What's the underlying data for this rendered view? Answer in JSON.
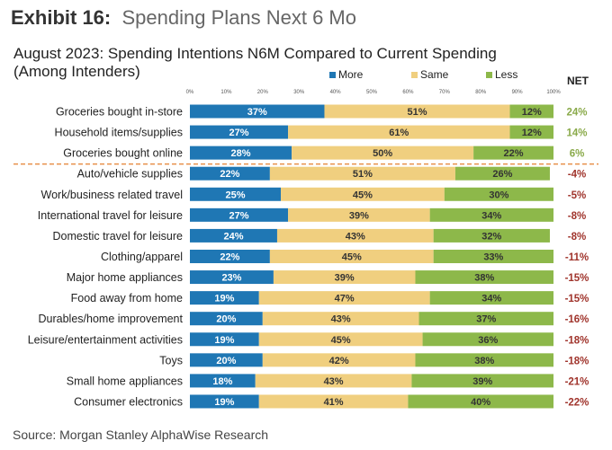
{
  "exhibit": {
    "label": "Exhibit 16:",
    "title": "Spending Plans Next 6 Mo"
  },
  "source": "Source: Morgan Stanley AlphaWise Research",
  "chart_data": {
    "type": "bar",
    "orientation": "horizontal",
    "stacked": true,
    "title": "August 2023: Spending Intentions N6M Compared to Current Spending (Among Intenders)",
    "xlim": [
      0,
      100
    ],
    "x_ticks": [
      "0%",
      "10%",
      "20%",
      "30%",
      "40%",
      "50%",
      "60%",
      "70%",
      "80%",
      "90%",
      "100%"
    ],
    "legend_placement": "top",
    "net_header": "NET",
    "colors": {
      "More": "#1f77b4",
      "Same": "#f0cf7f",
      "Less": "#8db84a",
      "net_positive": "#8aaa4a",
      "net_negative": "#a0342c",
      "divider": "#e8904a"
    },
    "categories": [
      "Groceries bought in-store",
      "Household items/supplies",
      "Groceries bought online",
      "Auto/vehicle supplies",
      "Work/business related travel",
      "International travel for leisure",
      "Domestic travel for leisure",
      "Clothing/apparel",
      "Major home appliances",
      "Food away from home",
      "Durables/home improvement",
      "Leisure/entertainment activities",
      "Toys",
      "Small home appliances",
      "Consumer electronics"
    ],
    "series": [
      {
        "name": "More",
        "values": [
          37,
          27,
          28,
          22,
          25,
          27,
          24,
          22,
          23,
          19,
          20,
          19,
          20,
          18,
          19
        ]
      },
      {
        "name": "Same",
        "values": [
          51,
          61,
          50,
          51,
          45,
          39,
          43,
          45,
          39,
          47,
          43,
          45,
          42,
          43,
          41
        ]
      },
      {
        "name": "Less",
        "values": [
          12,
          12,
          22,
          26,
          30,
          34,
          32,
          33,
          38,
          34,
          37,
          36,
          38,
          39,
          40
        ]
      }
    ],
    "net": [
      24,
      14,
      6,
      -4,
      -5,
      -8,
      -8,
      -11,
      -15,
      -15,
      -16,
      -18,
      -18,
      -21,
      -22
    ]
  }
}
